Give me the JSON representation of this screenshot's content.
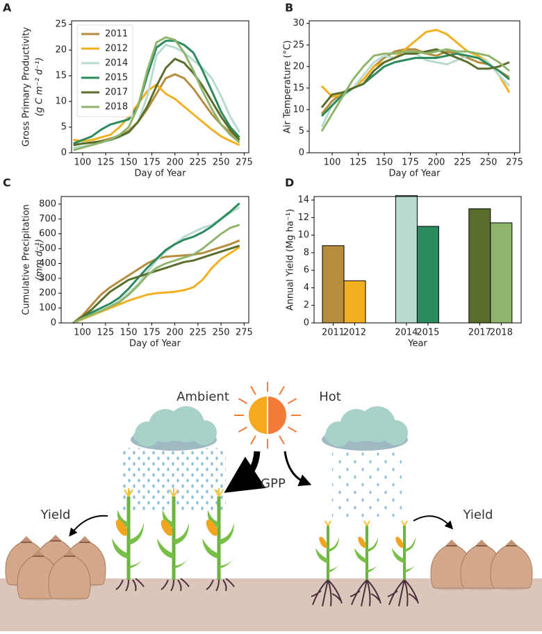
{
  "chart_data": [
    {
      "type": "line",
      "panel": "A",
      "ylabel": "Gross Primary Productivity",
      "ylabel_units": "(g C m⁻² d⁻¹)",
      "xlabel": "Day of Year",
      "x": [
        90,
        100,
        110,
        120,
        130,
        140,
        150,
        160,
        170,
        180,
        190,
        200,
        210,
        220,
        230,
        240,
        250,
        260,
        270
      ],
      "xlim": [
        88,
        280
      ],
      "xticks": [
        100,
        125,
        150,
        175,
        200,
        225,
        250,
        275
      ],
      "ylim": [
        0,
        25.7
      ],
      "yticks": [
        0,
        5,
        10,
        15,
        20,
        25
      ],
      "legend": "upper left",
      "series": [
        {
          "name": "2011",
          "color": "#b58d3d",
          "values": [
            1.5,
            1.8,
            2,
            2.3,
            2.8,
            3.3,
            4.3,
            6,
            8.5,
            11.5,
            14.5,
            15.3,
            14.5,
            12.5,
            10,
            7.5,
            5.5,
            4,
            2.5
          ]
        },
        {
          "name": "2012",
          "color": "#f2b01e",
          "values": [
            2.5,
            2.3,
            2.5,
            3,
            3.5,
            5,
            7,
            9.5,
            12,
            13.3,
            11.5,
            10.5,
            9,
            7.5,
            6,
            4.5,
            3.2,
            2.3,
            1.5
          ]
        },
        {
          "name": "2014",
          "color": "#b9dbcf",
          "values": [
            1,
            1.2,
            1.6,
            2,
            2.5,
            3,
            4,
            6,
            11,
            19,
            21,
            20.5,
            19.5,
            18,
            16.5,
            14.5,
            11,
            7,
            4
          ]
        },
        {
          "name": "2015",
          "color": "#2b8a5e",
          "values": [
            1.8,
            2.5,
            3.2,
            4.5,
            5.5,
            6,
            6.5,
            9,
            15,
            20.5,
            21.8,
            21.8,
            21,
            19.5,
            16,
            12,
            8,
            5,
            3
          ]
        },
        {
          "name": "2017",
          "color": "#5a6e2c",
          "values": [
            1.5,
            1.8,
            2,
            2.2,
            2.5,
            3.2,
            4,
            6,
            9,
            13,
            16.5,
            18.3,
            17.5,
            15.5,
            13,
            10,
            7,
            4.5,
            2.5
          ]
        },
        {
          "name": "2018",
          "color": "#8fb56d",
          "values": [
            0.5,
            1,
            1.5,
            2,
            2.6,
            3.5,
            5,
            9,
            16,
            21.5,
            22.5,
            22,
            19.5,
            16,
            12,
            8.5,
            5.5,
            3.5,
            2
          ]
        }
      ]
    },
    {
      "type": "line",
      "panel": "B",
      "ylabel": "Air Temperature (°C)",
      "xlabel": "Day of Year",
      "x": [
        90,
        100,
        110,
        120,
        130,
        140,
        150,
        160,
        170,
        180,
        190,
        200,
        210,
        220,
        230,
        240,
        250,
        260,
        270
      ],
      "xlim": [
        78,
        280
      ],
      "xticks": [
        100,
        125,
        150,
        175,
        200,
        225,
        250,
        275
      ],
      "ylim": [
        0,
        30.6
      ],
      "yticks": [
        0,
        5,
        10,
        15,
        20,
        25,
        30
      ],
      "series": [
        {
          "color": "#b58d3d",
          "values": [
            9,
            12,
            14,
            15,
            17,
            20,
            22,
            23.5,
            24,
            24,
            23,
            22.5,
            23.5,
            23,
            22,
            21,
            20.5,
            19,
            17.5
          ]
        },
        {
          "color": "#f2b01e",
          "values": [
            15.5,
            13,
            13.5,
            15,
            17,
            20,
            21,
            22,
            24,
            26,
            28,
            28.5,
            27.5,
            25.5,
            23.5,
            22.5,
            21,
            18,
            14
          ]
        },
        {
          "color": "#b9dbcf",
          "values": [
            6,
            11,
            13,
            15,
            18,
            21,
            22.5,
            22,
            23,
            23,
            21.5,
            21,
            20.5,
            21.5,
            22.5,
            22,
            21,
            18,
            15.5
          ]
        },
        {
          "color": "#2b8a5e",
          "values": [
            8.5,
            11,
            13.5,
            15,
            16,
            18,
            20,
            21,
            21.5,
            22,
            22,
            22,
            22.5,
            23,
            22.5,
            22,
            20.5,
            19,
            17
          ]
        },
        {
          "color": "#5a6e2c",
          "values": [
            10.5,
            13.5,
            14,
            15,
            16,
            19,
            21,
            22,
            23,
            23,
            23.5,
            24,
            23,
            22,
            21,
            19.5,
            19.5,
            20,
            21
          ]
        },
        {
          "color": "#8fb56d",
          "values": [
            5,
            9,
            13,
            17,
            20,
            22.5,
            23,
            23,
            23.5,
            23.5,
            23,
            23.5,
            24,
            23.5,
            23.5,
            23,
            22.5,
            21,
            19
          ]
        }
      ]
    },
    {
      "type": "line",
      "panel": "C",
      "ylabel": "Cumulative Precipitation",
      "ylabel_units": "(mm d⁻¹)",
      "xlabel": "Day of Year",
      "x": [
        90,
        100,
        110,
        120,
        130,
        140,
        150,
        160,
        170,
        180,
        190,
        200,
        210,
        220,
        230,
        240,
        250,
        260,
        270
      ],
      "xlim": [
        77,
        280
      ],
      "xticks": [
        100,
        125,
        150,
        175,
        200,
        225,
        250,
        275
      ],
      "ylim": [
        0,
        851
      ],
      "yticks": [
        0,
        100,
        200,
        300,
        400,
        500,
        600,
        700,
        800
      ],
      "series": [
        {
          "color": "#b58d3d",
          "values": [
            0,
            50,
            120,
            190,
            240,
            280,
            320,
            360,
            400,
            430,
            445,
            450,
            455,
            460,
            470,
            490,
            510,
            530,
            555
          ]
        },
        {
          "color": "#f2b01e",
          "values": [
            0,
            25,
            50,
            75,
            100,
            125,
            150,
            170,
            190,
            200,
            205,
            210,
            220,
            240,
            290,
            370,
            430,
            470,
            510
          ]
        },
        {
          "color": "#b9dbcf",
          "values": [
            0,
            30,
            55,
            80,
            110,
            150,
            200,
            260,
            340,
            420,
            480,
            530,
            580,
            610,
            640,
            660,
            700,
            740,
            780
          ]
        },
        {
          "color": "#2b8a5e",
          "values": [
            0,
            40,
            70,
            100,
            130,
            170,
            230,
            300,
            370,
            430,
            490,
            530,
            560,
            580,
            610,
            650,
            700,
            750,
            805
          ]
        },
        {
          "color": "#5a6e2c",
          "values": [
            0,
            40,
            90,
            150,
            210,
            250,
            290,
            310,
            330,
            350,
            370,
            390,
            410,
            420,
            440,
            460,
            480,
            500,
            520
          ]
        },
        {
          "color": "#8fb56d",
          "values": [
            0,
            30,
            55,
            80,
            110,
            140,
            190,
            250,
            320,
            370,
            400,
            420,
            440,
            460,
            500,
            550,
            600,
            640,
            660
          ]
        }
      ]
    },
    {
      "type": "bar",
      "panel": "D",
      "ylabel": "Annual Yield (Mg ha⁻¹)",
      "xlabel": "Year",
      "categories": [
        "2011",
        "2012",
        "2014",
        "2015",
        "2017",
        "2018"
      ],
      "values": [
        8.8,
        4.8,
        14.5,
        11.0,
        13.0,
        11.4
      ],
      "colors": [
        "#b58d3d",
        "#f2b01e",
        "#b9dbcf",
        "#2b8a5e",
        "#5a6e2c",
        "#8fb56d"
      ],
      "ylim": [
        0,
        14.4
      ],
      "yticks": [
        0,
        2,
        4,
        6,
        8,
        10,
        12,
        14
      ]
    }
  ],
  "illustration": {
    "sun_left": "Ambient",
    "sun_right": "Hot",
    "flux": "GPP",
    "yield_left": "Yield",
    "yield_right": "Yield"
  }
}
